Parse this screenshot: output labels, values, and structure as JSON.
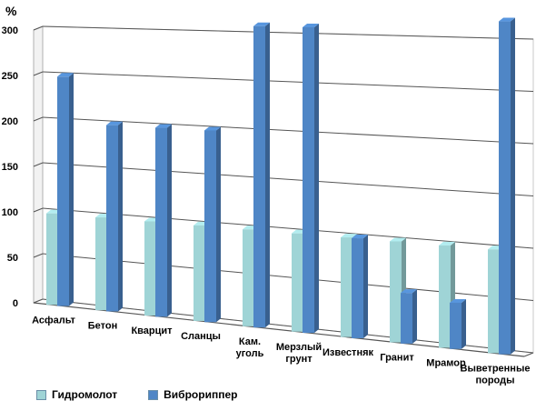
{
  "chart_data": {
    "type": "bar",
    "ylabel": "%",
    "ylim": [
      0,
      300
    ],
    "yticks": [
      "0",
      "50",
      "100",
      "150",
      "200",
      "250",
      "300"
    ],
    "categories": [
      "Асфальт",
      "Бетон",
      "Кварцит",
      "Сланцы",
      "Кам. уголь",
      "Мерзлый грунт",
      "Известняк",
      "Гранит",
      "Мрамор",
      "Выветренные породы"
    ],
    "category_lines": [
      [
        "Асфальт"
      ],
      [
        "Бетон"
      ],
      [
        "Кварцит"
      ],
      [
        "Сланцы"
      ],
      [
        "Кам.",
        "уголь"
      ],
      [
        "Мерзлый",
        "грунт"
      ],
      [
        "Известняк"
      ],
      [
        "Гранит"
      ],
      [
        "Мрамор"
      ],
      [
        "Выветренные",
        "породы"
      ]
    ],
    "series": [
      {
        "name": "Гидромолот",
        "values": [
          100,
          100,
          100,
          100,
          100,
          100,
          100,
          100,
          100,
          100
        ],
        "color": "#9fd4d6"
      },
      {
        "name": "Виброриппер",
        "values": [
          250,
          200,
          200,
          200,
          310,
          310,
          100,
          50,
          45,
          320
        ],
        "color": "#4f86c6"
      }
    ],
    "grid": true,
    "legend": "bottom-left"
  }
}
